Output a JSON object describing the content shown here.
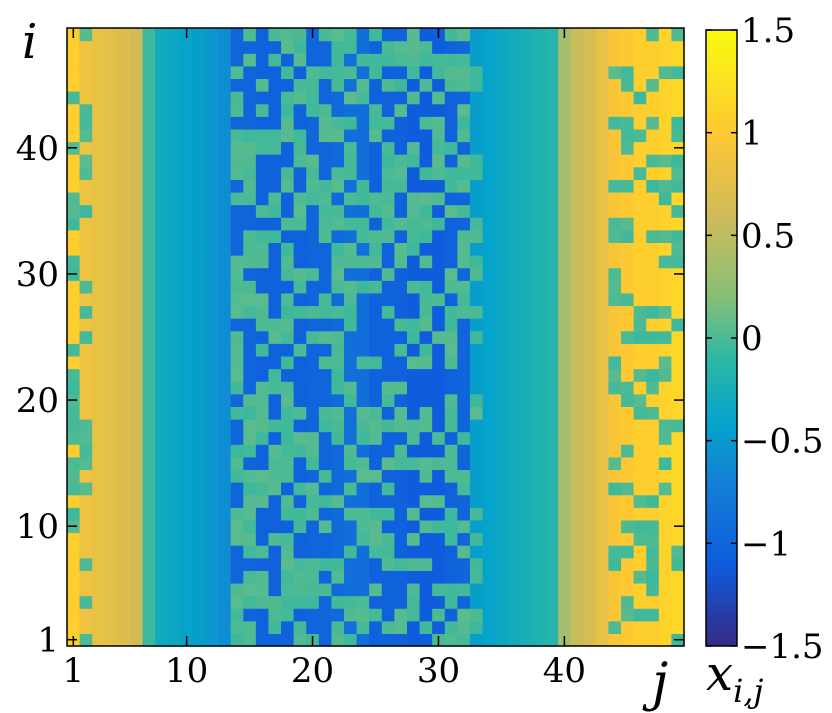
{
  "chart_data": {
    "type": "heatmap",
    "title": "",
    "xlabel": "j",
    "ylabel": "i",
    "colorbar_label_base": "x",
    "colorbar_label_sub": "i,j",
    "x_range": [
      1,
      49
    ],
    "y_range": [
      1,
      49
    ],
    "x_ticks": [
      1,
      10,
      20,
      30,
      40
    ],
    "y_ticks": [
      1,
      10,
      20,
      30,
      40
    ],
    "x_tick_labels": [
      "1",
      "10",
      "20",
      "30",
      "40"
    ],
    "y_tick_labels": [
      "1",
      "10",
      "20",
      "30",
      "40"
    ],
    "color_range": [
      -1.5,
      1.5
    ],
    "colorbar_ticks": [
      1.5,
      1,
      0.5,
      0,
      -0.5,
      -1,
      -1.5
    ],
    "colorbar_tick_labels": [
      "1.5",
      "1",
      "0.5",
      "0",
      "−0.5",
      "−1",
      "−1.5"
    ],
    "colormap": "parula",
    "colormap_stops": [
      {
        "v": -1.5,
        "color": "#352a87"
      },
      {
        "v": -1.1,
        "color": "#0f5cdd"
      },
      {
        "v": -0.7,
        "color": "#1481d6"
      },
      {
        "v": -0.4,
        "color": "#06a4ca"
      },
      {
        "v": -0.1,
        "color": "#2eb7a4"
      },
      {
        "v": 0.2,
        "color": "#87bf77"
      },
      {
        "v": 0.6,
        "color": "#d1bb59"
      },
      {
        "v": 1.0,
        "color": "#fec832"
      },
      {
        "v": 1.5,
        "color": "#f9fb0e"
      }
    ],
    "column_profile": [
      1.05,
      0.85,
      0.8,
      0.75,
      0.7,
      0.6,
      -0.05,
      -0.3,
      -0.35,
      -0.4,
      -0.45,
      -0.5,
      -0.6,
      -1.0,
      -1.0,
      -1.05,
      -1.05,
      -1.05,
      -1.05,
      -1.0,
      -1.0,
      -0.95,
      -0.9,
      -0.9,
      -1.05,
      -1.05,
      -1.05,
      -1.1,
      -1.1,
      -1.1,
      -1.05,
      -1.0,
      -0.45,
      -0.4,
      -0.35,
      -0.3,
      -0.25,
      -0.2,
      -0.15,
      0.35,
      0.55,
      0.65,
      0.8,
      0.95,
      1.0,
      1.05,
      1.05,
      1.1,
      1.15
    ],
    "pattern_value": 0.0,
    "pattern_region_columns": [
      14,
      33
    ],
    "edge_pattern_columns": [
      1,
      2,
      44,
      45,
      46,
      47,
      48,
      49
    ],
    "pattern_seed": 7
  }
}
